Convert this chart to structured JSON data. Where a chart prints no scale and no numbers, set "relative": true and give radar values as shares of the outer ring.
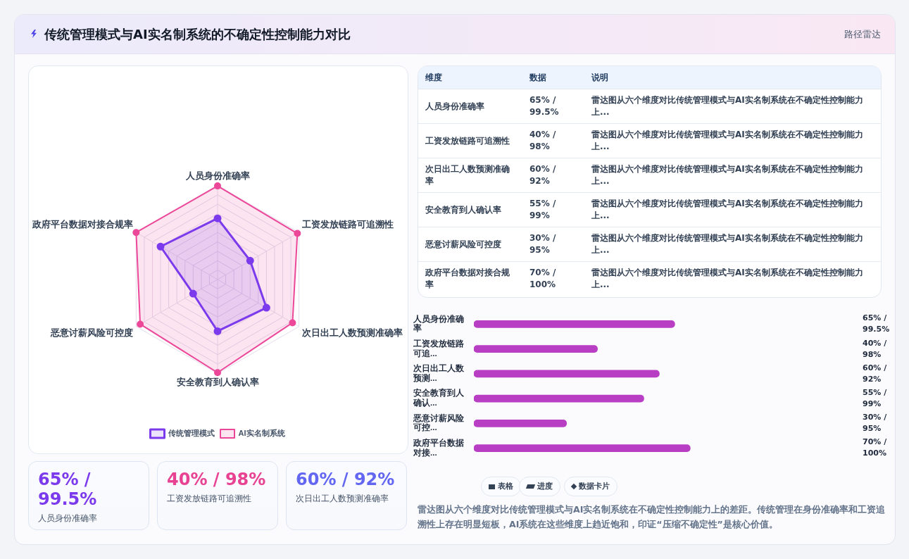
{
  "chart_data": [
    {
      "type": "other",
      "title": "传统管理模式与AI实名制系统的不确定性控制能力对比",
      "subtitle": "路径雷达"
    },
    {
      "type": "radar",
      "relative": true,
      "legend": "bottom",
      "marker": "circle",
      "grid": true,
      "categories": [
        "人员身份准确率",
        "工资发放链路可追溯性",
        "次日出工人数预测准确率",
        "安全教育到人确认率",
        "恶意讨薪风险可控度",
        "政府平台数据对接合规率"
      ],
      "series": [
        {
          "name": "传统管理模式",
          "color": "#7c3aed",
          "values": [
            0.65,
            0.4,
            0.6,
            0.55,
            0.3,
            0.7
          ]
        },
        {
          "name": "AI实名制系统",
          "color": "#ec4899",
          "values": [
            0.995,
            0.98,
            0.92,
            0.99,
            0.95,
            1
          ]
        }
      ]
    },
    {
      "type": "other",
      "categories": [
        "人员身份准确率",
        "工资发放链路可追溯性",
        "次日出工人数预测准确率",
        "安全教育到人确认率",
        "恶意讨薪风险可控度",
        "政府平台数据对接合规率"
      ],
      "value_labels": [
        "65% / 99.5%",
        "40% / 98%",
        "60% / 92%",
        "55% / 99%",
        "30% / 95%",
        "70% / 100%"
      ],
      "annotations": [
        "维度",
        "数据",
        "说明",
        "雷达图从六个维度对比传统管理模式与AI实名制系统在不确定性控制能力上...",
        "雷达图从六个维度对比传统管理模式与AI实名制系统在不确定性控制能力上...",
        "雷达图从六个维度对比传统管理模式与AI实名制系统在不确定性控制能力上...",
        "雷达图从六个维度对比传统管理模式与AI实名制系统在不确定性控制能力上...",
        "雷达图从六个维度对比传统管理模式与AI实名制系统在不确定性控制能力上...",
        "雷达图从六个维度对比传统管理模式与AI实名制系统在不确定性控制能力上..."
      ]
    },
    {
      "type": "bar",
      "orientation": "horizontal",
      "color": "#b83fc4",
      "categories": [
        "人员身份准确率",
        "工资发放链路可追...",
        "次日出工人数预测...",
        "安全教育到人确认...",
        "恶意讨薪风险可控...",
        "政府平台数据对接..."
      ],
      "values": [
        65,
        40,
        60,
        55,
        30,
        70
      ],
      "value_labels": [
        "65% / 99.5%",
        "40% / 98%",
        "60% / 92%",
        "55% / 99%",
        "30% / 95%",
        "70% / 100%"
      ]
    },
    {
      "type": "other",
      "categories": [
        "人员身份准确率",
        "工资发放链路可追溯性",
        "次日出工人数预测准确率"
      ],
      "value_labels": [
        "65% / 99.5%",
        "40% / 98%",
        "60% / 92%"
      ]
    },
    {
      "type": "other",
      "annotations": [
        "表格",
        "进度",
        "数据卡片",
        "雷达图从六个维度对比传统管理模式与AI实名制系统在不确定性控制能力上的差距。传统管理在身份准确率和工资追溯性上存在明显短板，AI系统在这些维度上趋近饱和，印证“压缩不确定性”是核心价值。"
      ]
    }
  ]
}
